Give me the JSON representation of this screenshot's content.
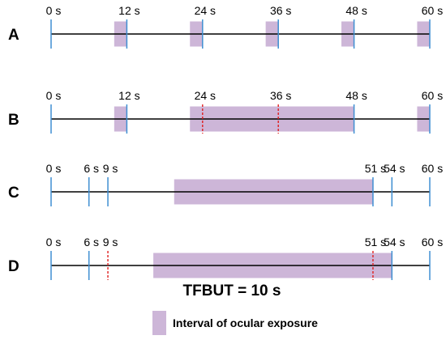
{
  "title": "TFBUT = 10 s",
  "legend": {
    "label": "Interval of ocular exposure",
    "color": "#cdb6d8"
  },
  "colors": {
    "tick": "#3f8fd2",
    "dashed": "#e02020",
    "axis": "#000000"
  },
  "time_range": [
    0,
    60
  ],
  "rows": [
    {
      "label": "A",
      "ticks": [
        {
          "t": 0,
          "label": "0 s"
        },
        {
          "t": 12,
          "label": "12 s"
        },
        {
          "t": 24,
          "label": "24 s"
        },
        {
          "t": 36,
          "label": "36 s"
        },
        {
          "t": 48,
          "label": "48 s"
        },
        {
          "t": 60,
          "label": "60 s"
        }
      ],
      "dashed": [],
      "exposures": [
        [
          10,
          12
        ],
        [
          22,
          24
        ],
        [
          34,
          36
        ],
        [
          46,
          48
        ],
        [
          58,
          60
        ]
      ]
    },
    {
      "label": "B",
      "ticks": [
        {
          "t": 0,
          "label": "0 s"
        },
        {
          "t": 12,
          "label": "12 s"
        },
        {
          "t": 48,
          "label": "48 s"
        },
        {
          "t": 60,
          "label": "60 s"
        }
      ],
      "dashed": [
        {
          "t": 24,
          "label": "24 s"
        },
        {
          "t": 36,
          "label": "36 s"
        }
      ],
      "exposures": [
        [
          10,
          12
        ],
        [
          22,
          48
        ],
        [
          58,
          60
        ]
      ]
    },
    {
      "label": "C",
      "ticks": [
        {
          "t": 0,
          "label": "0 s"
        },
        {
          "t": 6,
          "label": "6 s"
        },
        {
          "t": 9,
          "label": "9 s"
        },
        {
          "t": 51,
          "label": "51 s"
        },
        {
          "t": 54,
          "label": "54 s"
        },
        {
          "t": 60,
          "label": "60 s"
        }
      ],
      "dashed": [],
      "exposures": [
        [
          19.5,
          51
        ]
      ]
    },
    {
      "label": "D",
      "ticks": [
        {
          "t": 0,
          "label": "0 s"
        },
        {
          "t": 6,
          "label": "6 s"
        },
        {
          "t": 54,
          "label": "54 s"
        },
        {
          "t": 60,
          "label": "60 s"
        }
      ],
      "dashed": [
        {
          "t": 9,
          "label": "9 s"
        },
        {
          "t": 51,
          "label": "51 s"
        }
      ],
      "exposures": [
        [
          16.2,
          54
        ]
      ]
    }
  ]
}
